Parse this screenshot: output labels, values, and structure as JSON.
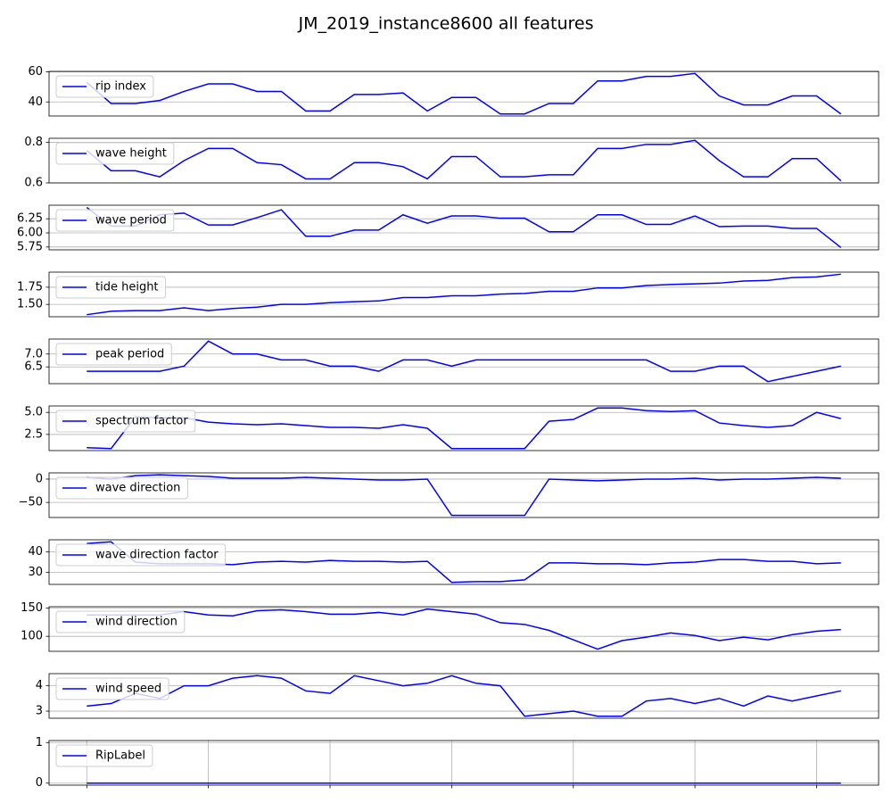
{
  "title": "JM_2019_instance8600 all features",
  "chart_data": [
    {
      "type": "line",
      "legend": "upper left",
      "grid": "y",
      "xlim": [
        -1.55,
        32.55
      ],
      "ylim": [
        30.65,
        60.35
      ],
      "yticks": [
        40,
        60
      ],
      "series": [
        {
          "name": "rip index",
          "color": "#0000ff",
          "values": [
            53,
            39,
            39,
            41,
            47,
            52,
            52,
            47,
            47,
            34,
            34,
            45,
            45,
            46,
            34,
            43,
            43,
            32,
            32,
            39,
            39,
            54,
            54,
            57,
            57,
            59,
            44,
            38,
            38,
            44,
            44,
            32
          ]
        }
      ]
    },
    {
      "type": "line",
      "legend": "upper left",
      "grid": "y",
      "xlim": [
        -1.55,
        32.55
      ],
      "ylim": [
        0.6,
        0.82
      ],
      "yticks": [
        0.6,
        0.8
      ],
      "series": [
        {
          "name": "wave height",
          "color": "#0000ff",
          "values": [
            0.76,
            0.66,
            0.66,
            0.63,
            0.71,
            0.77,
            0.77,
            0.7,
            0.69,
            0.62,
            0.62,
            0.7,
            0.7,
            0.68,
            0.62,
            0.73,
            0.73,
            0.63,
            0.63,
            0.64,
            0.64,
            0.77,
            0.77,
            0.79,
            0.79,
            0.81,
            0.71,
            0.63,
            0.63,
            0.72,
            0.72,
            0.61
          ]
        }
      ]
    },
    {
      "type": "line",
      "legend": "upper left",
      "grid": "y",
      "xlim": [
        -1.55,
        32.55
      ],
      "ylim": [
        5.7,
        6.49
      ],
      "yticks": [
        {
          "value": 5.75,
          "label": "5.75"
        },
        {
          "value": 6,
          "label": "6.00"
        },
        {
          "value": 6.25,
          "label": "6.25"
        }
      ],
      "series": [
        {
          "name": "wave period",
          "color": "#0000ff",
          "values": [
            6.45,
            6.12,
            6.12,
            6.32,
            6.35,
            6.14,
            6.14,
            6.27,
            6.41,
            5.94,
            5.94,
            6.05,
            6.05,
            6.32,
            6.17,
            6.3,
            6.3,
            6.26,
            6.26,
            6.02,
            6.02,
            6.32,
            6.32,
            6.15,
            6.15,
            6.3,
            6.11,
            6.12,
            6.12,
            6.08,
            6.08,
            5.74
          ]
        }
      ]
    },
    {
      "type": "line",
      "legend": "upper left",
      "grid": "y",
      "xlim": [
        -1.55,
        32.55
      ],
      "ylim": [
        1.32,
        1.97
      ],
      "yticks": [
        {
          "value": 1.5,
          "label": "1.50"
        },
        {
          "value": 1.75,
          "label": "1.75"
        }
      ],
      "series": [
        {
          "name": "tide height",
          "color": "#0000ff",
          "values": [
            1.35,
            1.4,
            1.41,
            1.41,
            1.45,
            1.41,
            1.44,
            1.46,
            1.5,
            1.5,
            1.525,
            1.54,
            1.55,
            1.6,
            1.6,
            1.625,
            1.625,
            1.65,
            1.66,
            1.69,
            1.69,
            1.74,
            1.74,
            1.775,
            1.79,
            1.8,
            1.81,
            1.84,
            1.85,
            1.89,
            1.9,
            1.94
          ]
        }
      ]
    },
    {
      "type": "line",
      "legend": "upper left",
      "grid": "y",
      "xlim": [
        -1.55,
        32.55
      ],
      "ylim": [
        5.85,
        7.58
      ],
      "yticks": [
        6.5,
        {
          "value": 7,
          "label": "7.0"
        }
      ],
      "series": [
        {
          "name": "peak period",
          "color": "#0000ff",
          "values": [
            6.33,
            6.33,
            6.33,
            6.33,
            6.53,
            7.5,
            7.0,
            7.0,
            6.77,
            6.77,
            6.53,
            6.53,
            6.33,
            6.77,
            6.77,
            6.53,
            6.77,
            6.77,
            6.77,
            6.77,
            6.77,
            6.77,
            6.77,
            6.77,
            6.33,
            6.33,
            6.53,
            6.53,
            5.93,
            6.13,
            6.33,
            6.53
          ]
        }
      ]
    },
    {
      "type": "line",
      "legend": "upper left",
      "grid": "y",
      "xlim": [
        -1.55,
        32.55
      ],
      "ylim": [
        0.67,
        5.73
      ],
      "yticks": [
        2.5,
        {
          "value": 5,
          "label": "5.0"
        }
      ],
      "series": [
        {
          "name": "spectrum factor",
          "color": "#0000ff",
          "values": [
            1.0,
            0.9,
            4.5,
            4.4,
            4.4,
            3.9,
            3.7,
            3.6,
            3.7,
            3.5,
            3.3,
            3.3,
            3.2,
            3.6,
            3.2,
            0.9,
            0.9,
            0.9,
            0.9,
            4.0,
            4.2,
            5.5,
            5.5,
            5.2,
            5.1,
            5.2,
            3.8,
            3.5,
            3.3,
            3.5,
            5.0,
            4.3
          ]
        }
      ]
    },
    {
      "type": "line",
      "legend": "upper left",
      "grid": "y",
      "xlim": [
        -1.55,
        32.55
      ],
      "ylim": [
        -82.3,
        13.3
      ],
      "yticks": [
        {
          "value": -50,
          "label": "−50"
        },
        0
      ],
      "series": [
        {
          "name": "wave direction",
          "color": "#0000ff",
          "values": [
            3.7,
            0,
            7.4,
            9.3,
            7.4,
            5.6,
            1.9,
            1.9,
            1.9,
            3.7,
            1.9,
            0,
            -1.9,
            -1.9,
            0,
            -77.8,
            -77.8,
            -77.8,
            -77.8,
            0,
            -1.9,
            -3.7,
            -1.9,
            0,
            0,
            1.9,
            -1.9,
            0,
            0,
            1.9,
            3.7,
            1.9
          ]
        }
      ]
    },
    {
      "type": "line",
      "legend": "upper left",
      "grid": "y",
      "xlim": [
        -1.55,
        32.55
      ],
      "ylim": [
        24,
        46
      ],
      "yticks": [
        30,
        40
      ],
      "series": [
        {
          "name": "wave direction factor",
          "color": "#0000ff",
          "values": [
            44.2,
            45,
            35,
            34.2,
            34.2,
            34.2,
            33.75,
            35,
            35.4,
            35,
            35.8,
            35.4,
            35.4,
            35,
            35.4,
            25,
            25.4,
            25.4,
            26.25,
            34.6,
            34.6,
            34.2,
            34.2,
            33.75,
            34.6,
            35,
            36.25,
            36.25,
            35.4,
            35.4,
            34.2,
            34.6
          ]
        }
      ]
    },
    {
      "type": "line",
      "legend": "upper left",
      "grid": "y",
      "xlim": [
        -1.55,
        32.55
      ],
      "ylim": [
        73.4,
        152.6
      ],
      "yticks": [
        100,
        150
      ],
      "series": [
        {
          "name": "wind direction",
          "color": "#0000ff",
          "values": [
            137.9,
            137.9,
            137.9,
            137.9,
            143.9,
            137.9,
            136.4,
            145.5,
            147,
            143.9,
            139.4,
            139.4,
            142.4,
            137.9,
            148.5,
            143.9,
            139.4,
            124.2,
            121.2,
            110.6,
            93.9,
            77.3,
            92.4,
            98.5,
            106,
            101.5,
            92.4,
            98.5,
            93.9,
            103,
            109,
            112
          ]
        }
      ]
    },
    {
      "type": "line",
      "legend": "upper left",
      "grid": "y",
      "xlim": [
        -1.55,
        32.55
      ],
      "ylim": [
        2.72,
        4.48
      ],
      "yticks": [
        3,
        4
      ],
      "series": [
        {
          "name": "wind speed",
          "color": "#0000ff",
          "values": [
            3.2,
            3.3,
            3.7,
            3.5,
            4.0,
            4.0,
            4.3,
            4.4,
            4.3,
            3.8,
            3.7,
            4.4,
            4.2,
            4.0,
            4.1,
            4.4,
            4.1,
            4.0,
            2.8,
            2.9,
            3.0,
            2.8,
            2.8,
            3.4,
            3.5,
            3.3,
            3.5,
            3.2,
            3.6,
            3.4,
            3.6,
            3.8
          ]
        }
      ]
    },
    {
      "type": "line",
      "legend": "upper left",
      "grid": "both",
      "xlim": [
        -1.55,
        32.55
      ],
      "xticks": [
        0,
        5,
        10,
        15,
        20,
        25,
        30
      ],
      "ylim": [
        -0.05,
        1.05
      ],
      "yticks": [
        0,
        1
      ],
      "series": [
        {
          "name": "RipLabel",
          "color": "#0000ff",
          "values": [
            0,
            0,
            0,
            0,
            0,
            0,
            0,
            0,
            0,
            0,
            0,
            0,
            0,
            0,
            0,
            0,
            0,
            0,
            0,
            0,
            0,
            0,
            0,
            0,
            0,
            0,
            0,
            0,
            0,
            0,
            0,
            0
          ]
        }
      ]
    }
  ]
}
